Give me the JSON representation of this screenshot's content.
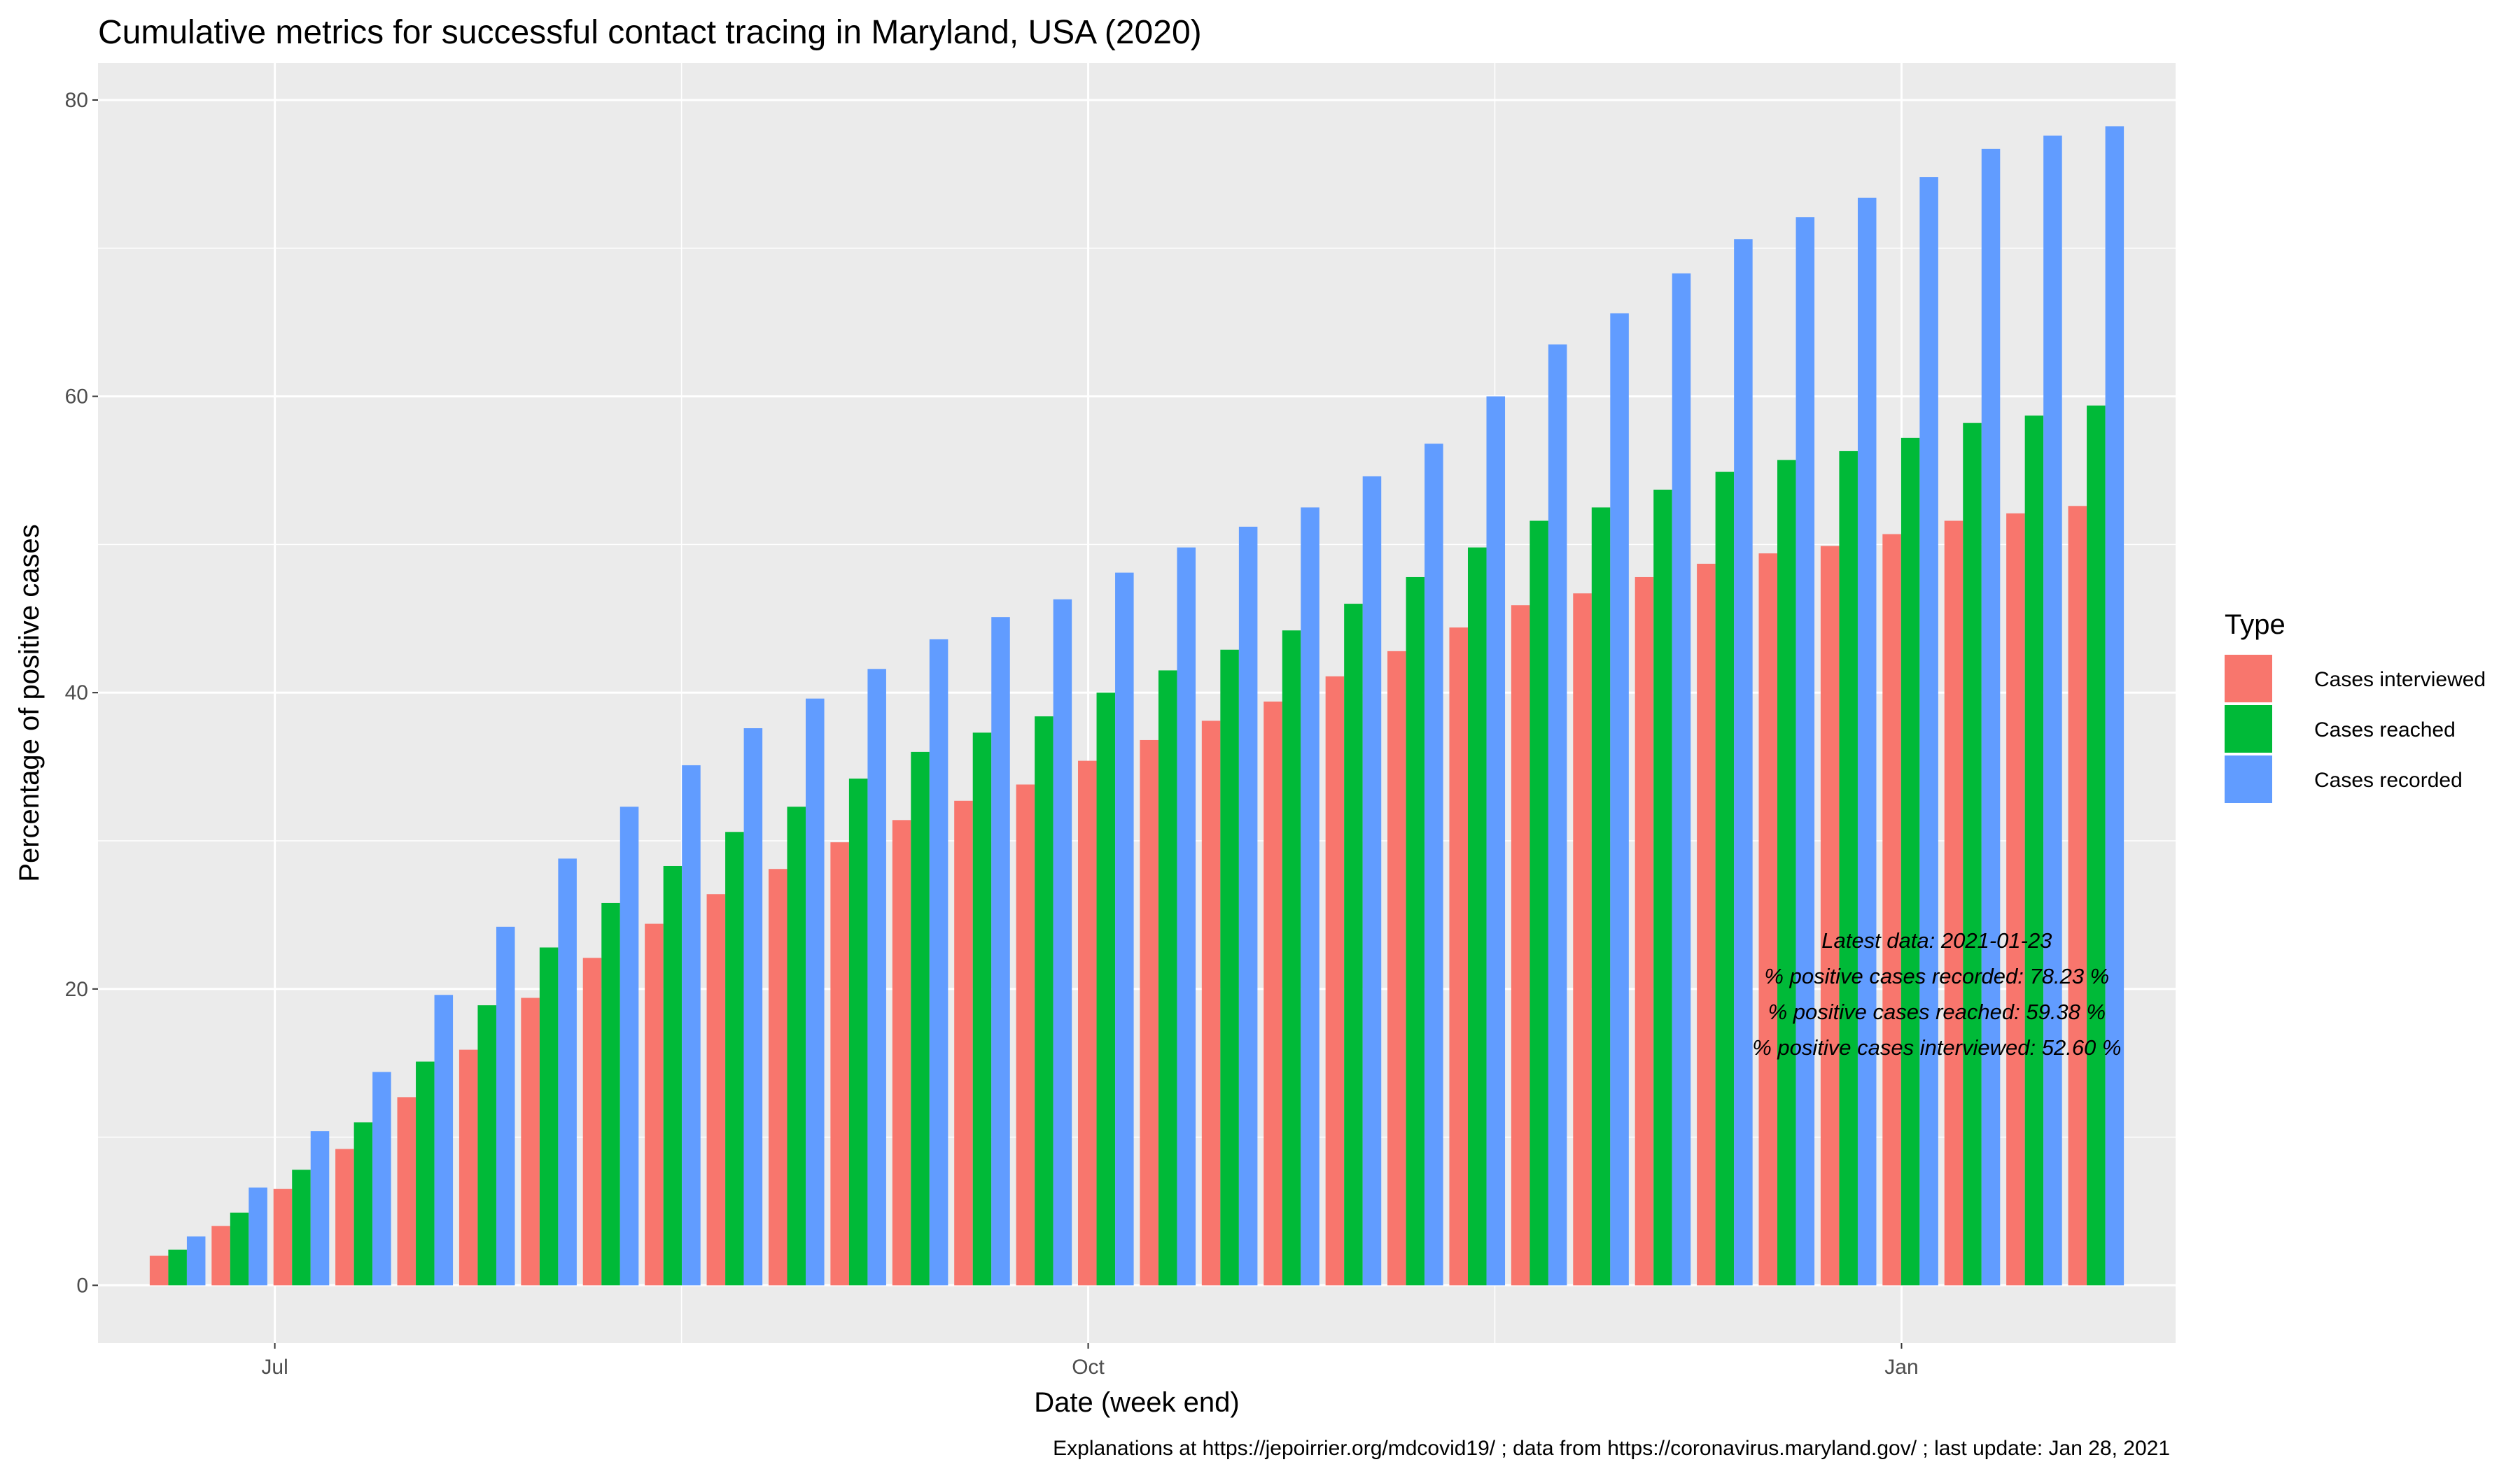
{
  "chart_data": {
    "type": "bar",
    "title": "Cumulative metrics for successful contact tracing in Maryland, USA (2020)",
    "xlabel": "Date (week end)",
    "ylabel": "Percentage of positive cases",
    "caption": "Explanations at https://jepoirrier.org/mdcovid19/ ; data from https://coronavirus.maryland.gov/ ; last update: Jan 28, 2021",
    "x_dates": [
      "2020-06-20",
      "2020-06-27",
      "2020-07-04",
      "2020-07-11",
      "2020-07-18",
      "2020-07-25",
      "2020-08-01",
      "2020-08-08",
      "2020-08-15",
      "2020-08-22",
      "2020-08-29",
      "2020-09-05",
      "2020-09-12",
      "2020-09-19",
      "2020-09-26",
      "2020-10-03",
      "2020-10-10",
      "2020-10-17",
      "2020-10-24",
      "2020-10-31",
      "2020-11-07",
      "2020-11-14",
      "2020-11-21",
      "2020-11-28",
      "2020-12-05",
      "2020-12-12",
      "2020-12-19",
      "2020-12-26",
      "2021-01-02",
      "2021-01-09",
      "2021-01-16",
      "2021-01-23"
    ],
    "x_ticks": [
      {
        "date": "2020-07-01",
        "label": "Jul"
      },
      {
        "date": "2020-10-01",
        "label": "Oct"
      },
      {
        "date": "2021-01-01",
        "label": "Jan"
      }
    ],
    "x_minor_grid": [
      "2020-08-16",
      "2020-11-16"
    ],
    "xlim": [
      "2020-06-11",
      "2021-02-01"
    ],
    "ylim": [
      -3.9,
      82.5
    ],
    "y_ticks": [
      0,
      20,
      40,
      60,
      80
    ],
    "grid": true,
    "series": [
      {
        "name": "Cases interviewed",
        "color": "#F8766D",
        "values": [
          2.0,
          4.0,
          6.5,
          9.2,
          12.7,
          15.9,
          19.4,
          22.1,
          24.4,
          26.4,
          28.1,
          29.9,
          31.4,
          32.7,
          33.8,
          35.4,
          36.8,
          38.1,
          39.4,
          41.1,
          42.8,
          44.4,
          45.9,
          46.7,
          47.8,
          48.7,
          49.4,
          49.9,
          50.7,
          51.6,
          52.1,
          52.6
        ]
      },
      {
        "name": "Cases reached",
        "color": "#00BA38",
        "values": [
          2.4,
          4.9,
          7.8,
          11.0,
          15.1,
          18.9,
          22.8,
          25.8,
          28.3,
          30.6,
          32.3,
          34.2,
          36.0,
          37.3,
          38.4,
          40.0,
          41.5,
          42.9,
          44.2,
          46.0,
          47.8,
          49.8,
          51.6,
          52.5,
          53.7,
          54.9,
          55.7,
          56.3,
          57.2,
          58.2,
          58.7,
          59.38
        ]
      },
      {
        "name": "Cases recorded",
        "color": "#619CFF",
        "values": [
          3.3,
          6.6,
          10.4,
          14.4,
          19.6,
          24.2,
          28.8,
          32.3,
          35.1,
          37.6,
          39.6,
          41.6,
          43.6,
          45.1,
          46.3,
          48.1,
          49.8,
          51.2,
          52.5,
          54.6,
          56.8,
          60.0,
          63.5,
          65.6,
          68.3,
          70.6,
          72.1,
          73.4,
          74.8,
          76.7,
          77.6,
          78.23
        ]
      }
    ],
    "legend": {
      "title": "Type",
      "position": "right"
    },
    "annotation": [
      "Latest data: 2021-01-23",
      "% positive cases recorded: 78.23 %",
      "% positive cases reached: 59.38 %",
      "% positive cases interviewed: 52.60 %"
    ]
  }
}
